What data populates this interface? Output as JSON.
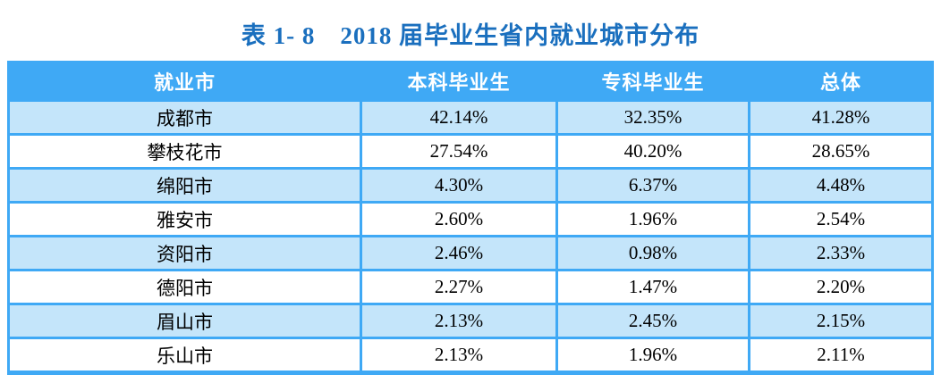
{
  "title": "表 1- 8　2018 届毕业生省内就业城市分布",
  "table": {
    "columns": [
      "就业市",
      "本科毕业生",
      "专科毕业生",
      "总体"
    ],
    "rows": [
      {
        "city": "成都市",
        "undergrad": "42.14%",
        "specialist": "32.35%",
        "overall": "41.28%"
      },
      {
        "city": "攀枝花市",
        "undergrad": "27.54%",
        "specialist": "40.20%",
        "overall": "28.65%"
      },
      {
        "city": "绵阳市",
        "undergrad": "4.30%",
        "specialist": "6.37%",
        "overall": "4.48%"
      },
      {
        "city": "雅安市",
        "undergrad": "2.60%",
        "specialist": "1.96%",
        "overall": "2.54%"
      },
      {
        "city": "资阳市",
        "undergrad": "2.46%",
        "specialist": "0.98%",
        "overall": "2.33%"
      },
      {
        "city": "德阳市",
        "undergrad": "2.27%",
        "specialist": "1.47%",
        "overall": "2.20%"
      },
      {
        "city": "眉山市",
        "undergrad": "2.13%",
        "specialist": "2.45%",
        "overall": "2.15%"
      },
      {
        "city": "乐山市",
        "undergrad": "2.13%",
        "specialist": "1.96%",
        "overall": "2.11%"
      }
    ]
  },
  "colors": {
    "header_blue": "#3fa9f5",
    "row_alt_blue": "#c4e5fa",
    "title_blue": "#1a6fbe",
    "header_text": "#ffffff",
    "body_text": "#000000",
    "background": "#ffffff"
  }
}
